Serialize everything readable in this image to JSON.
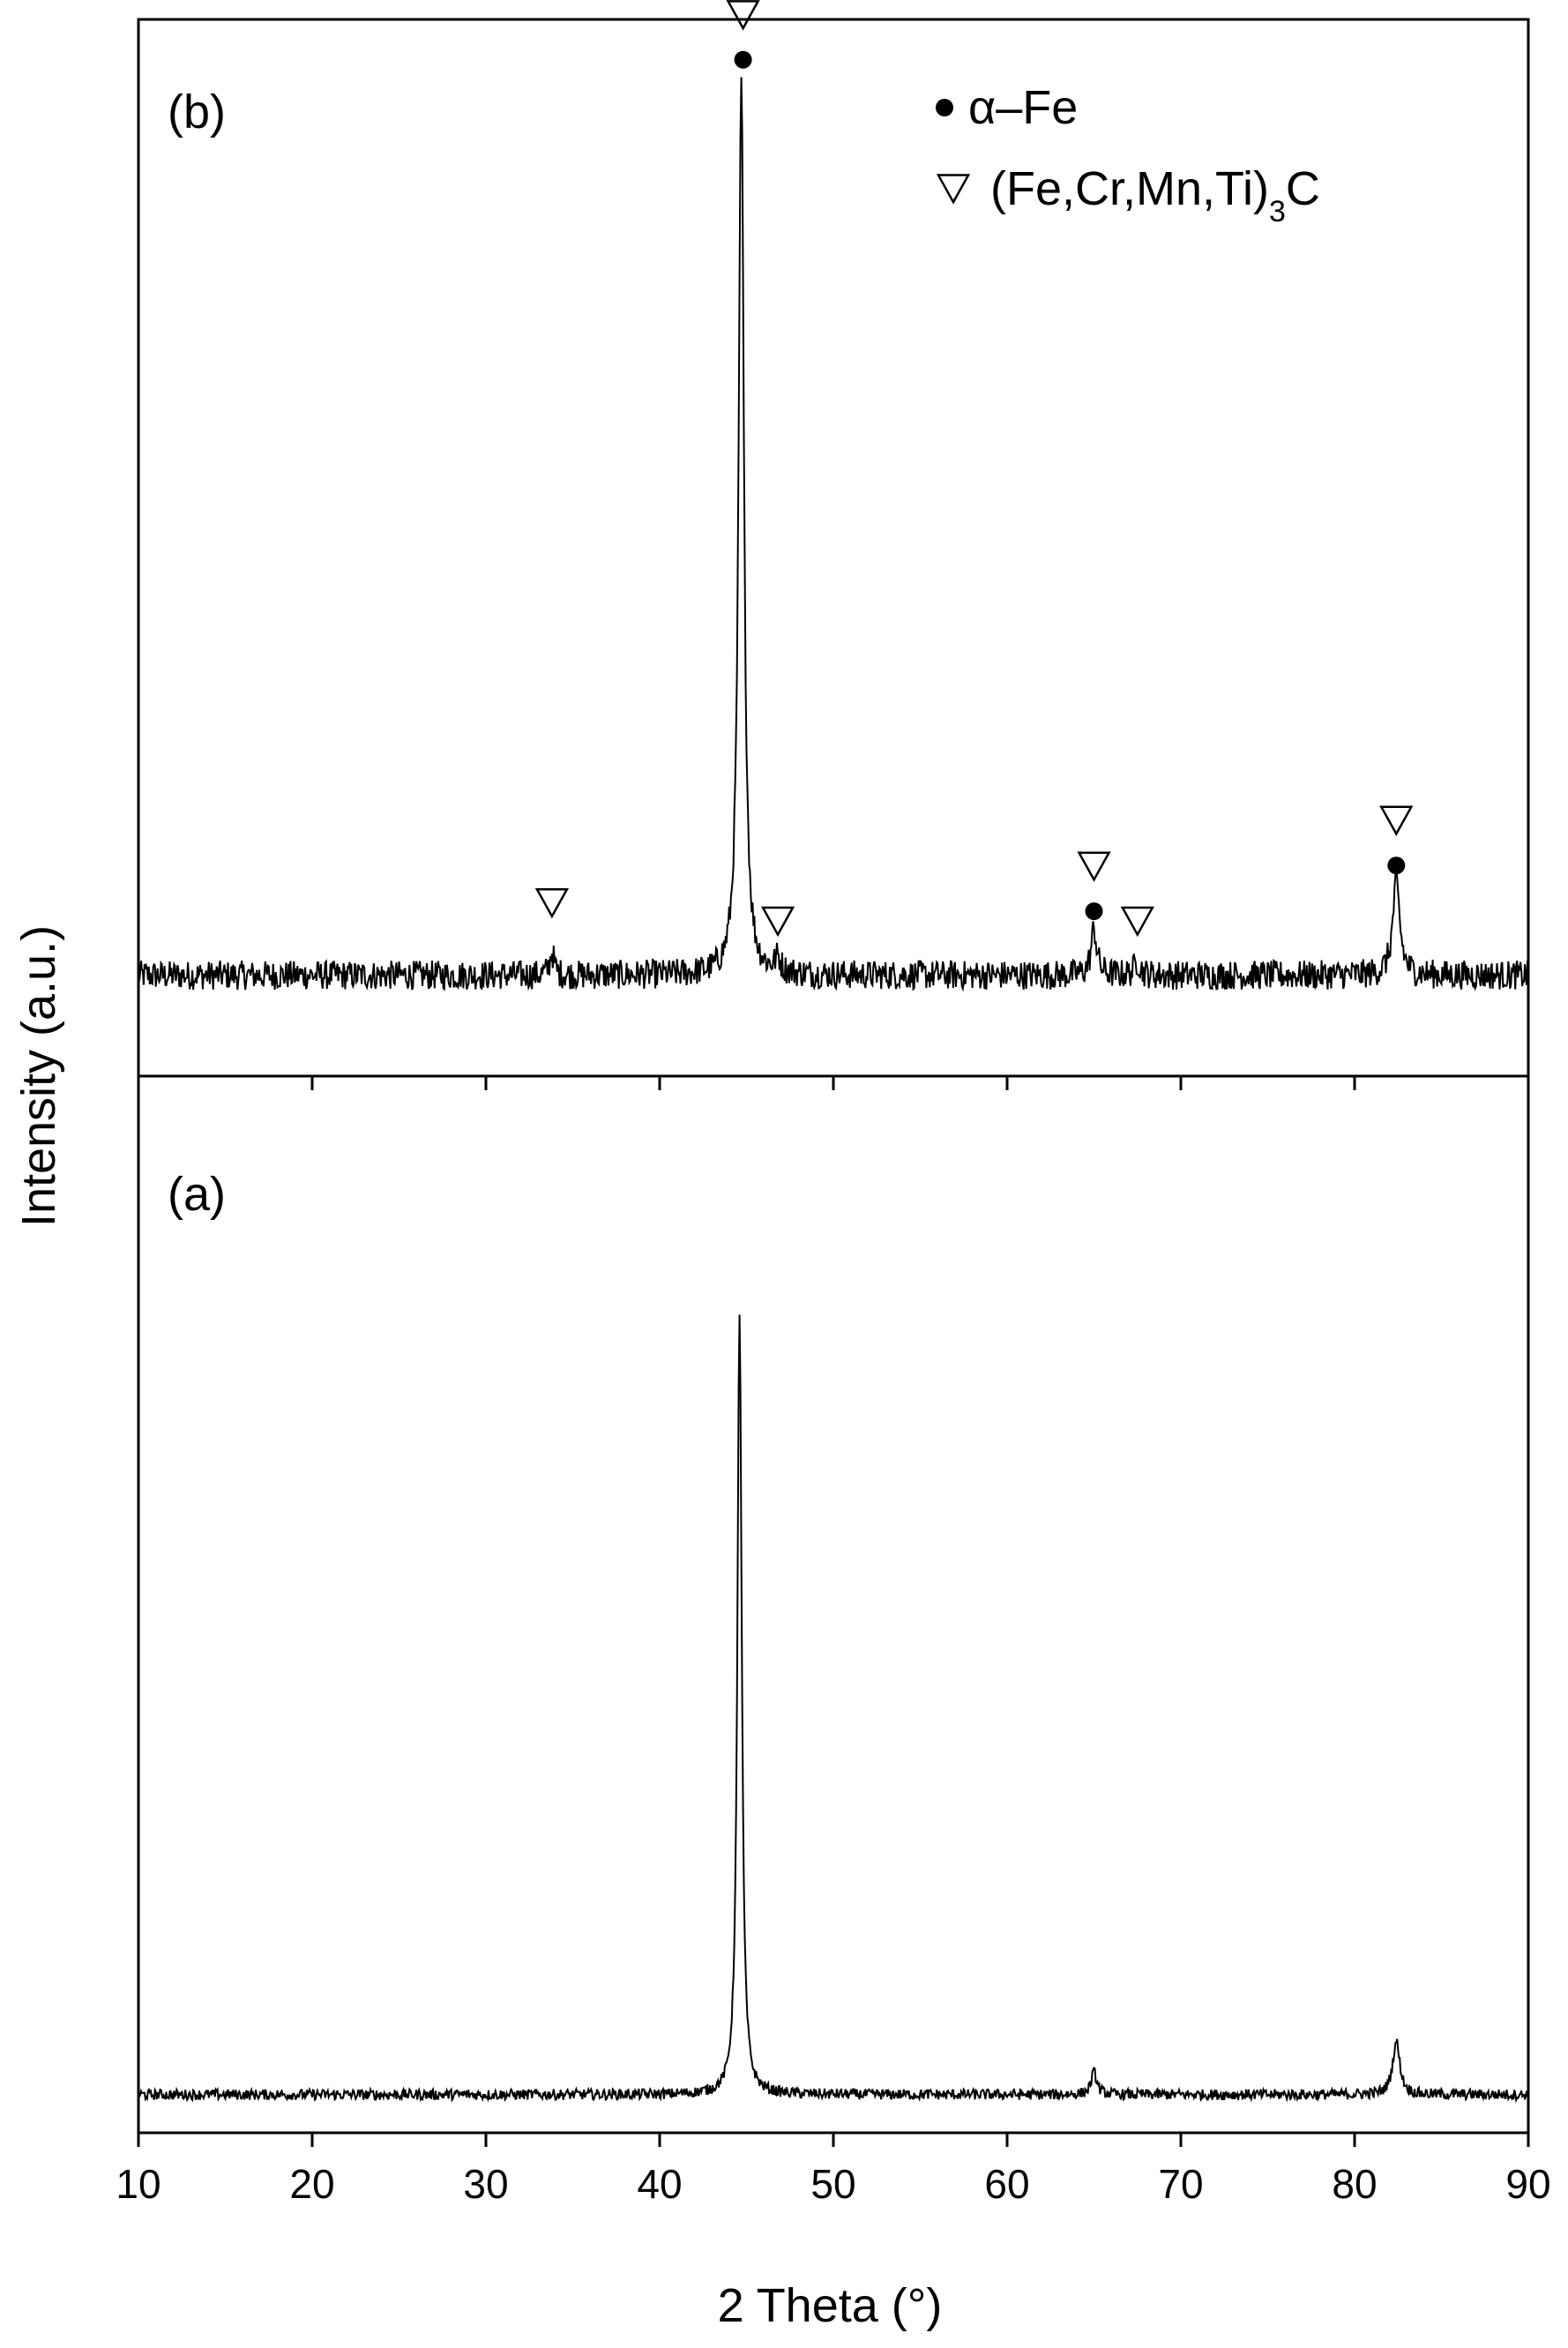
{
  "chart_data": {
    "type": "line",
    "xlabel": "2 Theta (°)",
    "ylabel": "Intensity (a.u.)",
    "xlim": [
      10,
      90
    ],
    "xticks": [
      10,
      20,
      30,
      40,
      50,
      60,
      70,
      80,
      90
    ],
    "grid": false,
    "colors": {
      "line": "#000000",
      "frame": "#000000",
      "background": "#ffffff"
    },
    "legend": {
      "position": "top-right of panel (b)",
      "entries": [
        {
          "marker": "filled-circle",
          "label": "α–Fe"
        },
        {
          "marker": "open-triangle-down",
          "label": "(Fe,Cr,Mn,Ti)",
          "subscript": "3",
          "suffix": "C"
        }
      ]
    },
    "panels": [
      {
        "label": "(b)",
        "position": "top",
        "ylim": [
          0,
          100
        ],
        "baseline": 6,
        "noise": 1.6,
        "peaks": [
          {
            "x": 33.8,
            "height": 2.5,
            "width": 0.15
          },
          {
            "x": 44.7,
            "height": 98,
            "width": 0.18
          },
          {
            "x": 46.8,
            "height": 1.5,
            "width": 0.2
          },
          {
            "x": 65.0,
            "height": 5,
            "width": 0.2
          },
          {
            "x": 67.5,
            "height": 1.5,
            "width": 0.2
          },
          {
            "x": 82.4,
            "height": 10,
            "width": 0.25
          }
        ],
        "markers": [
          {
            "x": 33.8,
            "type": "triangle",
            "level": 14
          },
          {
            "x": 44.8,
            "type": "triangle",
            "level": 111
          },
          {
            "x": 44.8,
            "type": "circle",
            "level": 106
          },
          {
            "x": 46.8,
            "type": "triangle",
            "level": 12
          },
          {
            "x": 65.0,
            "type": "triangle",
            "level": 18
          },
          {
            "x": 65.0,
            "type": "circle",
            "level": 13
          },
          {
            "x": 67.5,
            "type": "triangle",
            "level": 12
          },
          {
            "x": 82.4,
            "type": "triangle",
            "level": 23
          },
          {
            "x": 82.4,
            "type": "circle",
            "level": 18
          }
        ]
      },
      {
        "label": "(a)",
        "position": "bottom",
        "ylim": [
          0,
          100
        ],
        "baseline": 2.5,
        "noise": 0.6,
        "peaks": [
          {
            "x": 44.6,
            "height": 88,
            "width": 0.15
          },
          {
            "x": 65.0,
            "height": 2.5,
            "width": 0.2
          },
          {
            "x": 82.4,
            "height": 6,
            "width": 0.25
          }
        ],
        "markers": []
      }
    ]
  }
}
